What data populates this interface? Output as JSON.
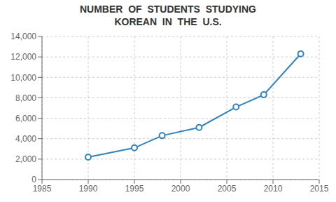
{
  "chart_data": {
    "type": "line",
    "title": "NUMBER  OF  STUDENTS  STUDYING\nKOREAN  IN  THE  U.S.",
    "x": [
      1990,
      1995,
      1998,
      2002,
      2006,
      2009,
      2013
    ],
    "values": [
      2200,
      3100,
      4300,
      5100,
      7100,
      8300,
      12300
    ],
    "xlim": [
      1985,
      2015
    ],
    "ylim": [
      0,
      14000
    ],
    "xticks": [
      1985,
      1990,
      1995,
      2000,
      2005,
      2010,
      2015
    ],
    "yticks": [
      0,
      {
        "value": 2000,
        "label": "2,000"
      },
      {
        "value": 4000,
        "label": "4,000"
      },
      {
        "value": 6000,
        "label": "6,000"
      },
      {
        "value": 8000,
        "label": "8,000"
      },
      {
        "value": 10000,
        "label": "10,000"
      },
      {
        "value": 12000,
        "label": "12,000"
      },
      {
        "value": 14000,
        "label": "14,000"
      }
    ],
    "grid": true,
    "marker": "circle"
  }
}
